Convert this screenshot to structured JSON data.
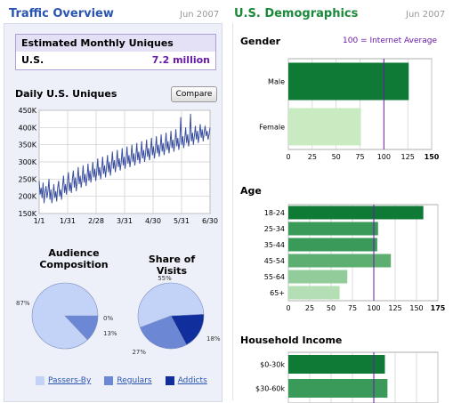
{
  "traffic": {
    "title": "Traffic Overview",
    "date": "Jun 2007",
    "uniques_header": "Estimated Monthly Uniques",
    "region": "U.S.",
    "uniques_value": "7.2 million",
    "daily_title": "Daily U.S. Uniques",
    "compare_label": "Compare",
    "audience_title_1": "Audience",
    "audience_title_2": "Composition",
    "share_title": "Share of Visits",
    "legend": [
      {
        "label": "Passers-By",
        "color": "#c3d3f7"
      },
      {
        "label": "Regulars",
        "color": "#6c87d3"
      },
      {
        "label": "Addicts",
        "color": "#102f9d"
      }
    ]
  },
  "demographics": {
    "title": "U.S. Demographics",
    "date": "Jun 2007",
    "gender_title": "Gender",
    "gender_note": "100 = Internet Average",
    "age_title": "Age",
    "income_title": "Household Income"
  },
  "chart_data": [
    {
      "type": "line",
      "title": "Daily U.S. Uniques",
      "x_ticks": [
        "1/1",
        "1/31",
        "2/28",
        "3/31",
        "4/30",
        "5/31",
        "6/30"
      ],
      "y_ticks": [
        "150K",
        "200K",
        "250K",
        "300K",
        "350K",
        "400K",
        "450K"
      ],
      "ylim": [
        150000,
        450000
      ],
      "grid": true,
      "series": [
        {
          "values": [
            245000,
            205000,
            225000,
            195000,
            240000,
            180000,
            210000,
            230000,
            195000,
            215000,
            250000,
            190000,
            220000,
            180000,
            205000,
            235000,
            195000,
            215000,
            185000,
            225000,
            245000,
            200000,
            220000,
            190000,
            230000,
            260000,
            210000,
            235000,
            205000,
            245000,
            270000,
            215000,
            240000,
            210000,
            250000,
            275000,
            225000,
            255000,
            215000,
            245000,
            285000,
            235000,
            260000,
            225000,
            250000,
            290000,
            240000,
            265000,
            230000,
            255000,
            295000,
            245000,
            275000,
            240000,
            265000,
            300000,
            255000,
            280000,
            245000,
            270000,
            310000,
            260000,
            285000,
            250000,
            275000,
            315000,
            265000,
            290000,
            255000,
            285000,
            320000,
            270000,
            300000,
            260000,
            290000,
            330000,
            280000,
            305000,
            270000,
            295000,
            335000,
            285000,
            310000,
            275000,
            300000,
            340000,
            290000,
            315000,
            280000,
            305000,
            345000,
            295000,
            320000,
            285000,
            310000,
            350000,
            300000,
            325000,
            290000,
            315000,
            355000,
            305000,
            330000,
            295000,
            320000,
            360000,
            310000,
            335000,
            300000,
            325000,
            365000,
            315000,
            340000,
            305000,
            330000,
            370000,
            320000,
            345000,
            310000,
            335000,
            375000,
            325000,
            350000,
            315000,
            340000,
            380000,
            330000,
            355000,
            320000,
            345000,
            385000,
            335000,
            360000,
            325000,
            350000,
            390000,
            340000,
            365000,
            330000,
            355000,
            395000,
            345000,
            370000,
            335000,
            360000,
            430000,
            350000,
            375000,
            340000,
            365000,
            400000,
            355000,
            380000,
            345000,
            370000,
            440000,
            360000,
            385000,
            350000,
            375000,
            405000,
            365000,
            390000,
            355000,
            380000,
            410000,
            370000,
            395000,
            360000,
            385000,
            405000,
            375000,
            390000,
            365000,
            380000,
            400000
          ]
        }
      ]
    },
    {
      "type": "pie",
      "title": "Audience Composition",
      "labels": [
        "Passers-By",
        "Regulars",
        "Addicts"
      ],
      "values": [
        87,
        13,
        0
      ],
      "value_labels": [
        "87%",
        "13%",
        "0%"
      ],
      "colors": [
        "#c3d3f7",
        "#6c87d3",
        "#102f9d"
      ]
    },
    {
      "type": "pie",
      "title": "Share of Visits",
      "labels": [
        "Passers-By",
        "Regulars",
        "Addicts"
      ],
      "values": [
        55,
        27,
        18
      ],
      "value_labels": [
        "55%",
        "27%",
        "18%"
      ],
      "colors": [
        "#c3d3f7",
        "#6c87d3",
        "#102f9d"
      ]
    },
    {
      "type": "bar",
      "orientation": "horizontal",
      "title": "Gender",
      "categories": [
        "Male",
        "Female"
      ],
      "values": [
        126,
        76
      ],
      "colors": [
        "#0e7a35",
        "#c9ebc2"
      ],
      "x_ticks": [
        "0",
        "25",
        "50",
        "75",
        "100",
        "125",
        "150"
      ],
      "xlim": [
        0,
        150
      ],
      "reference_line": 100
    },
    {
      "type": "bar",
      "orientation": "horizontal",
      "title": "Age",
      "categories": [
        "18-24",
        "25-34",
        "35-44",
        "45-54",
        "55-64",
        "65+"
      ],
      "values": [
        158,
        105,
        104,
        120,
        69,
        60
      ],
      "colors": [
        "#0e7a35",
        "#3a9a5a",
        "#3a9a5a",
        "#5caf70",
        "#92cc9a",
        "#b4deb4"
      ],
      "x_ticks": [
        "0",
        "25",
        "50",
        "75",
        "100",
        "125",
        "150",
        "175"
      ],
      "xlim": [
        0,
        175
      ],
      "reference_line": 100
    },
    {
      "type": "bar",
      "orientation": "horizontal",
      "title": "Household Income",
      "categories": [
        "$0-30k",
        "$30-60k"
      ],
      "values": [
        113,
        116
      ],
      "colors": [
        "#0e7a35",
        "#3a9a5a"
      ],
      "xlim": [
        0,
        175
      ],
      "reference_line": 100
    }
  ]
}
